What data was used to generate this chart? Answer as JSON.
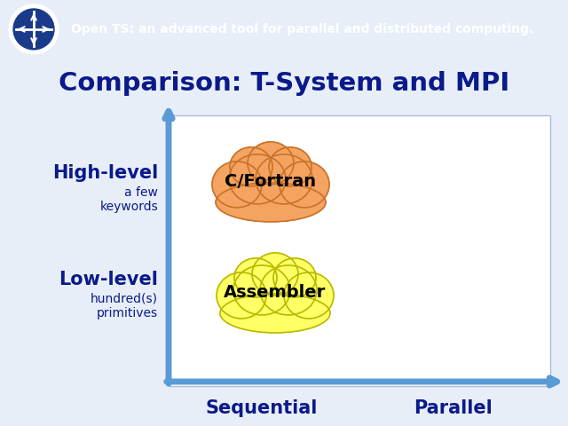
{
  "title": "Comparison: T-System and MPI",
  "header_text": "Open TS: an advanced tool for parallel and distributed computing.",
  "header_bg": "#1a3a8a",
  "main_bg": "#e8eef8",
  "title_color": "#0a1a8a",
  "axis_color": "#5b9bd5",
  "high_level_label": "High-level",
  "high_level_sub": "a few\nkeywords",
  "low_level_label": "Low-level",
  "low_level_sub": "hundred(s)\nprimitives",
  "sequential_label": "Sequential",
  "parallel_label": "Parallel",
  "cloud1_label": "C/Fortran",
  "cloud1_color": "#f4a460",
  "cloud1_edge": "#c8722a",
  "cloud2_label": "Assembler",
  "cloud2_color": "#ffff66",
  "cloud2_edge": "#b8b800",
  "label_color": "#0a1a8a",
  "box_bg": "#f0f4ff",
  "box_edge": "#aabbdd",
  "figsize": [
    6.4,
    4.8
  ],
  "dpi": 100
}
